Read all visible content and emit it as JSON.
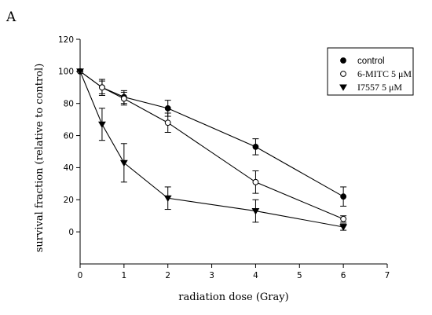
{
  "panel_label": "A",
  "chart_data": {
    "type": "line",
    "title": "",
    "xlabel": "radiation dose (Gray)",
    "ylabel": "survival fraction (relative to control)",
    "xlim": [
      0,
      7
    ],
    "ylim": [
      -20,
      120
    ],
    "xticks": [
      0,
      1,
      2,
      3,
      4,
      5,
      6,
      7
    ],
    "yticks": [
      0,
      20,
      40,
      60,
      80,
      100,
      120
    ],
    "legend_position": "top-right",
    "series": [
      {
        "name": "control",
        "marker": "filled-circle",
        "x": [
          0,
          0.5,
          1,
          2,
          4,
          6
        ],
        "y": [
          100,
          90,
          84,
          77,
          53,
          22
        ],
        "err": [
          0,
          5,
          4,
          5,
          5,
          6
        ]
      },
      {
        "name": "6-MITC 5 μM",
        "marker": "open-circle",
        "x": [
          0,
          0.5,
          1,
          2,
          4,
          6
        ],
        "y": [
          100,
          90,
          83,
          68,
          31,
          8
        ],
        "err": [
          0,
          4,
          4,
          6,
          7,
          2
        ]
      },
      {
        "name": "I7557 5 μM",
        "marker": "filled-triangle-down",
        "x": [
          0,
          0.5,
          1,
          2,
          4,
          6
        ],
        "y": [
          100,
          67,
          43,
          21,
          13,
          3
        ],
        "err": [
          0,
          10,
          12,
          7,
          7,
          2
        ]
      }
    ]
  }
}
